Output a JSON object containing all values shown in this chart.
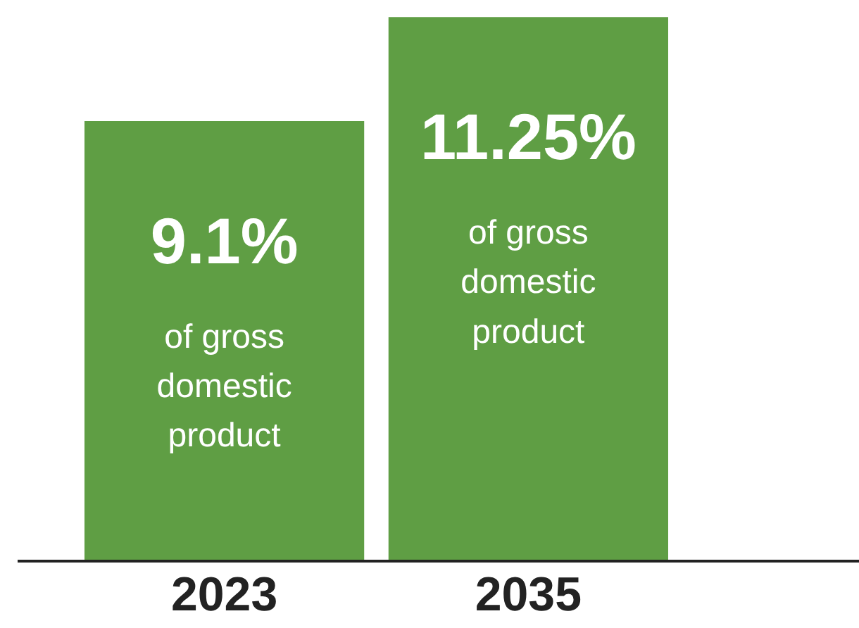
{
  "chart_data": {
    "type": "bar",
    "categories": [
      "2023",
      "2035"
    ],
    "values": [
      9.1,
      11.25
    ],
    "color": "#5f9e44",
    "value_labels": [
      "9.1%",
      "11.25%"
    ],
    "annotations": [
      "of gross domestic product",
      "of gross domestic product"
    ]
  }
}
